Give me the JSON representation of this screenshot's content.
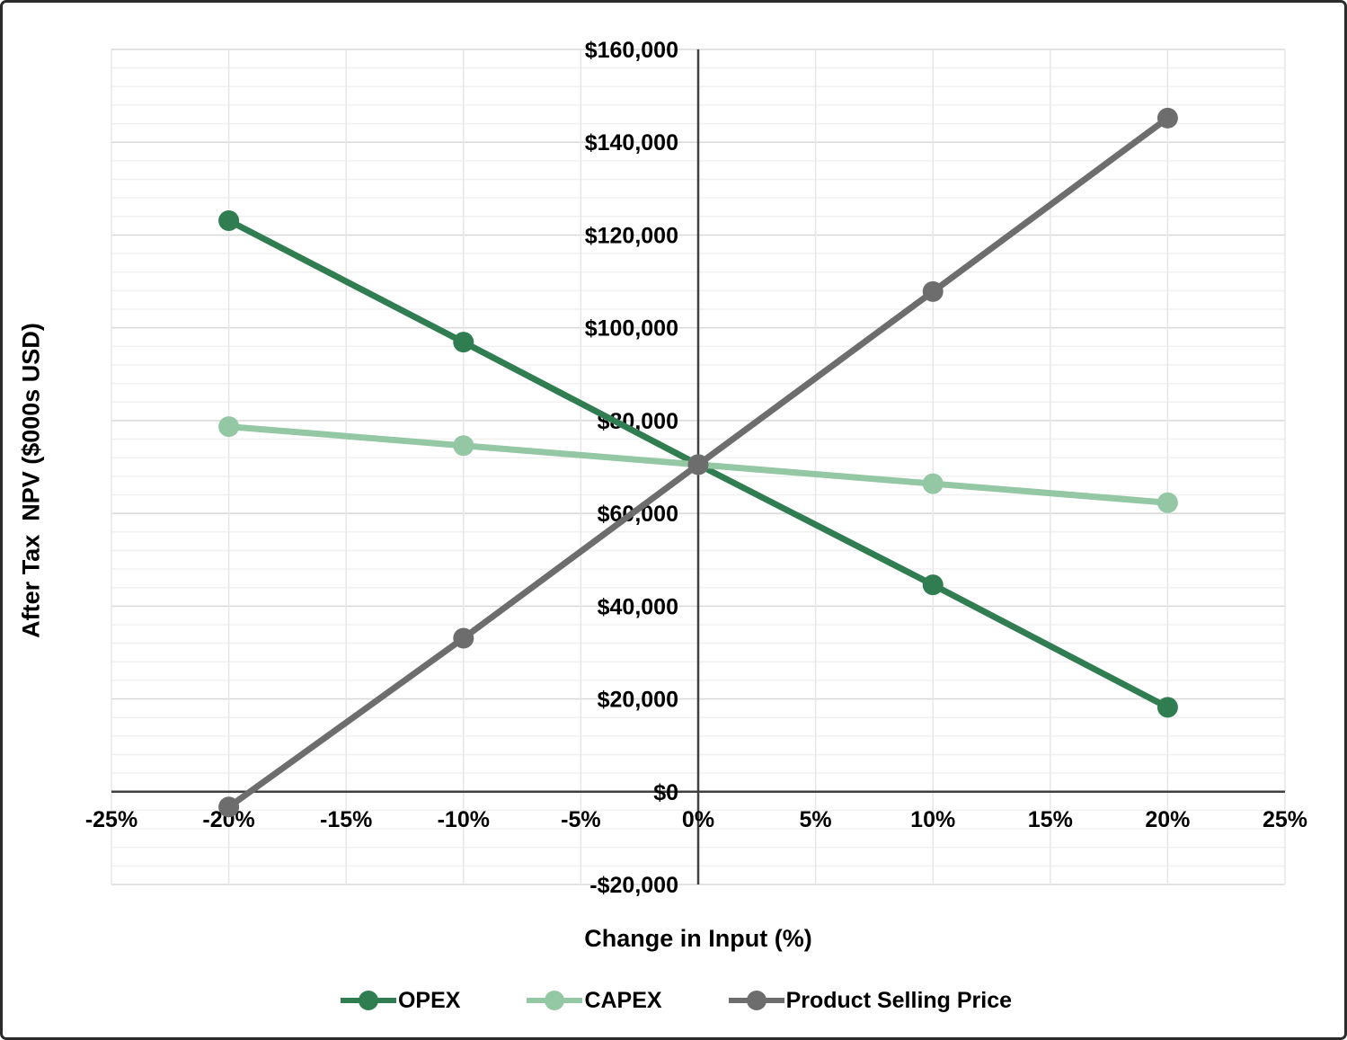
{
  "chart_data": {
    "type": "line",
    "title": "",
    "xlabel": "Change in Input (%)",
    "ylabel": "After Tax  NPV ($000s USD)",
    "x": [
      -20,
      -10,
      0,
      10,
      20
    ],
    "series": [
      {
        "name": "OPEX",
        "color": "#2F7D50",
        "values": [
          123100,
          96900,
          70500,
          44600,
          18200
        ]
      },
      {
        "name": "CAPEX",
        "color": "#94C7A3",
        "values": [
          78700,
          74600,
          70500,
          66400,
          62300
        ]
      },
      {
        "name": "Product Selling Price",
        "color": "#6D6D6D",
        "values": [
          -3300,
          33100,
          70500,
          107800,
          145200
        ]
      }
    ],
    "x_axis": {
      "min": -25,
      "max": 25,
      "tick_step": 5,
      "tick_labels": [
        "-25%",
        "-20%",
        "-15%",
        "-10%",
        "-5%",
        "0%",
        "5%",
        "10%",
        "15%",
        "20%",
        "25%"
      ]
    },
    "y_axis": {
      "min": -20000,
      "max": 160000,
      "major_step": 20000,
      "minor_step": 4000,
      "tick_labels": [
        "-$20,000",
        "$0",
        "$20,000",
        "$40,000",
        "$60,000",
        "$80,000",
        "$100,000",
        "$120,000",
        "$140,000",
        "$160,000"
      ]
    },
    "grid": {
      "major_color": "#D8D8D8",
      "minor_color": "#F0F0F0",
      "vertical_color": "#E7E7E7",
      "on": true
    },
    "axis_color": "#404040",
    "legend_position": "bottom"
  }
}
